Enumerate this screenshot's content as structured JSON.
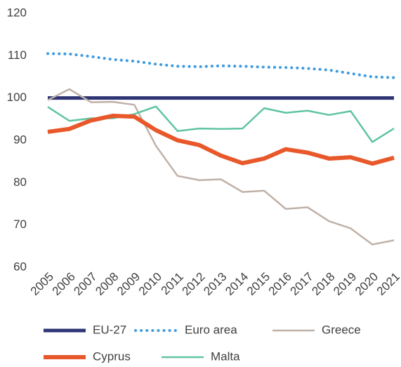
{
  "chart_data": {
    "type": "line",
    "categories": [
      "2005",
      "2006",
      "2007",
      "2008",
      "2009",
      "2010",
      "2011",
      "2012",
      "2013",
      "2014",
      "2015",
      "2016",
      "2017",
      "2018",
      "2019",
      "2020",
      "2021"
    ],
    "series": [
      {
        "name": "EU-27",
        "color": "#2e3474",
        "linewidth": 5,
        "dash": "solid",
        "values": [
          100,
          100,
          100,
          100,
          100,
          100,
          100,
          100,
          100,
          100,
          100,
          100,
          100,
          100,
          100,
          100,
          100
        ]
      },
      {
        "name": "Euro area",
        "color": "#3d9be0",
        "linewidth": 4,
        "dash": "dotted",
        "values": [
          110.5,
          110.4,
          109.8,
          109.1,
          108.7,
          108.0,
          107.5,
          107.4,
          107.6,
          107.5,
          107.3,
          107.2,
          107.0,
          106.6,
          105.8,
          105.0,
          104.8
        ]
      },
      {
        "name": "Greece",
        "color": "#bfb1a8",
        "linewidth": 2.5,
        "dash": "solid",
        "values": [
          99.5,
          102.1,
          99.0,
          99.1,
          98.4,
          88.7,
          81.6,
          80.6,
          80.8,
          77.8,
          78.1,
          73.8,
          74.2,
          70.9,
          69.2,
          65.4,
          66.4
        ]
      },
      {
        "name": "Cyprus",
        "color": "#e8582a",
        "linewidth": 6,
        "dash": "solid",
        "values": [
          92.0,
          92.7,
          94.7,
          95.8,
          95.6,
          92.4,
          90.0,
          88.9,
          86.4,
          84.6,
          85.7,
          87.9,
          87.1,
          85.7,
          86.0,
          84.5,
          85.9
        ]
      },
      {
        "name": "Malta",
        "color": "#5fc4a0",
        "linewidth": 2.5,
        "dash": "solid",
        "values": [
          97.9,
          94.6,
          95.2,
          95.2,
          96.2,
          98.0,
          92.2,
          92.8,
          92.7,
          92.8,
          97.6,
          96.5,
          97.0,
          96.0,
          96.9,
          89.6,
          92.8
        ]
      }
    ],
    "ylim": [
      60,
      120
    ],
    "yticks": [
      60,
      70,
      80,
      90,
      100,
      110,
      120
    ],
    "grid": false
  }
}
